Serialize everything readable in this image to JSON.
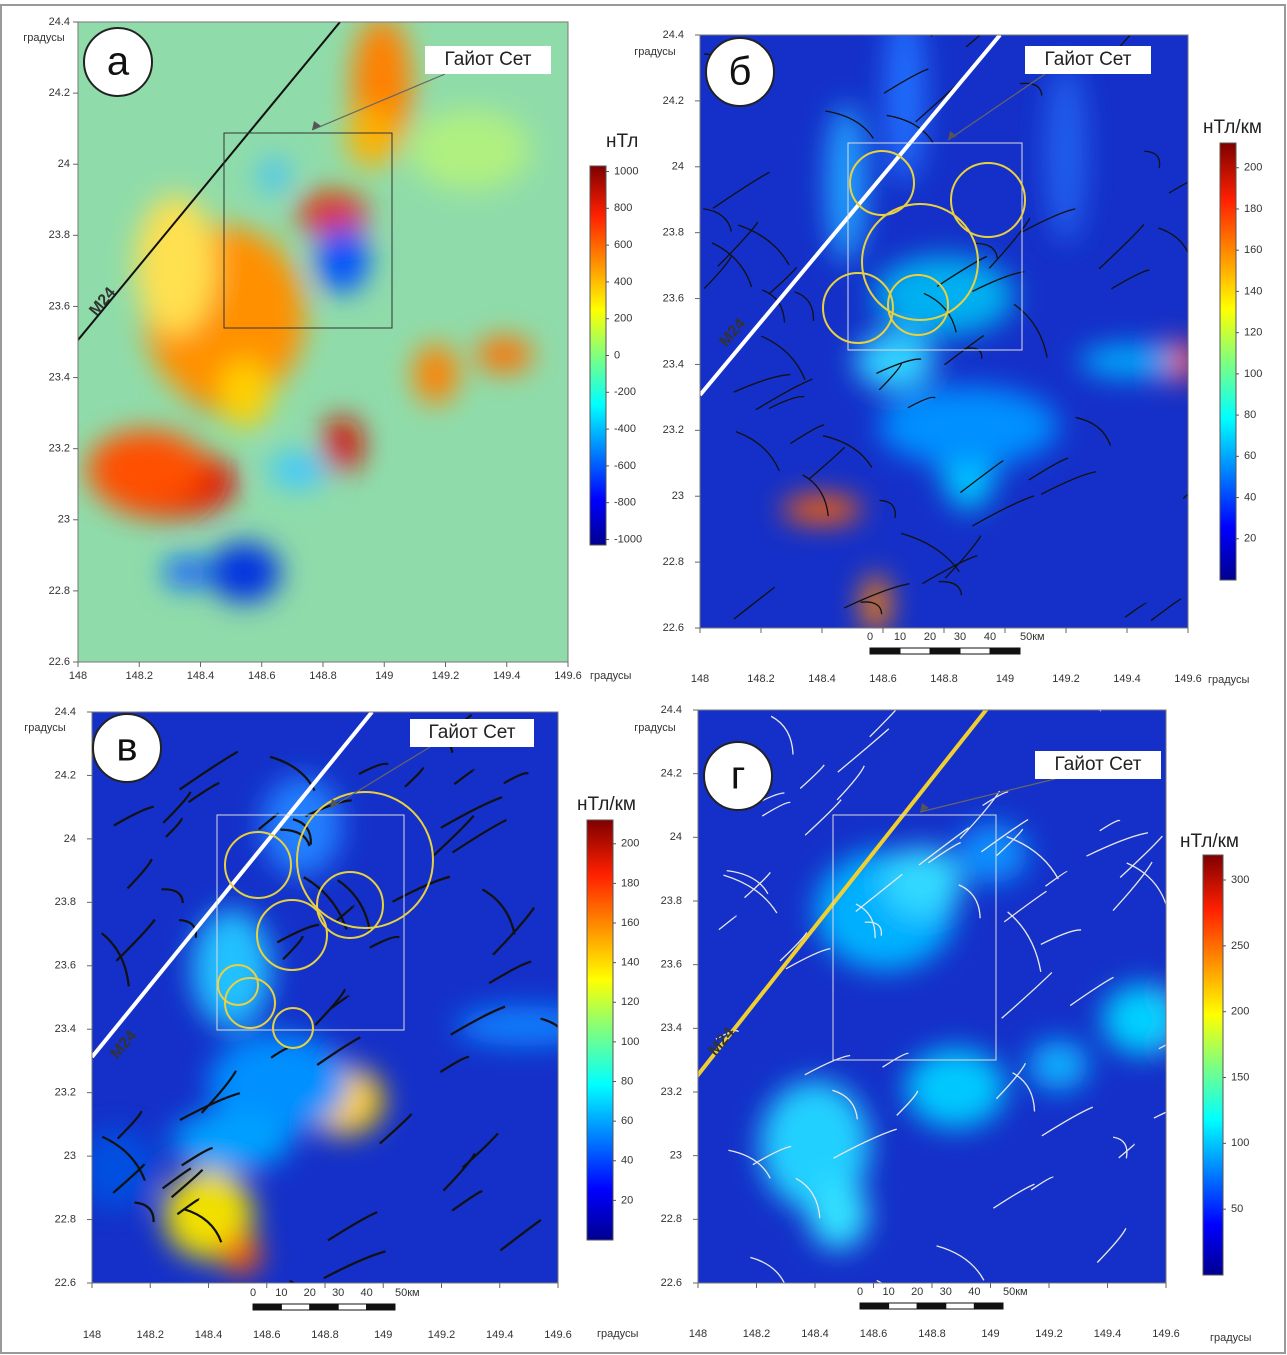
{
  "panels": [
    {
      "label": "а",
      "unit": "нТл",
      "x_unit": "градусы",
      "y_unit": "градусы",
      "line_label": "М24",
      "annotation": "Гайот Сет",
      "xlim": [
        148,
        149.6
      ],
      "xticks": [
        148,
        148.2,
        148.4,
        148.6,
        148.8,
        149,
        149.2,
        149.4,
        149.6
      ],
      "ylim": [
        22.6,
        24.4
      ],
      "yticks": [
        22.6,
        22.8,
        23,
        23.2,
        23.4,
        23.6,
        23.8,
        24,
        24.2,
        24.4
      ],
      "colorbar": {
        "lim": [
          -1030,
          1030
        ],
        "ticks": [
          1000,
          800,
          600,
          400,
          200,
          0,
          -200,
          -400,
          -600,
          -800,
          -1000
        ]
      }
    },
    {
      "label": "б",
      "unit": "нТл/км",
      "x_unit": "градусы",
      "y_unit": "градусы",
      "line_label": "М24",
      "annotation": "Гайот Сет",
      "xlim": [
        148,
        149.6
      ],
      "xticks": [
        148,
        148.2,
        148.4,
        148.6,
        148.8,
        149,
        149.2,
        149.4,
        149.6
      ],
      "ylim": [
        22.6,
        24.4
      ],
      "yticks": [
        22.6,
        22.8,
        23,
        23.2,
        23.4,
        23.6,
        23.8,
        24,
        24.2,
        24.4
      ],
      "colorbar": {
        "lim": [
          0,
          212
        ],
        "ticks": [
          200,
          180,
          160,
          140,
          120,
          100,
          80,
          60,
          40,
          20
        ]
      },
      "scale_labels": [
        "0",
        "10",
        "20",
        "30",
        "40",
        "50км"
      ]
    },
    {
      "label": "в",
      "unit": "нТл/км",
      "x_unit": "градусы",
      "y_unit": "градусы",
      "line_label": "М24",
      "annotation": "Гайот Сет",
      "xlim": [
        148,
        149.6
      ],
      "xticks": [
        148,
        148.2,
        148.4,
        148.6,
        148.8,
        149,
        149.2,
        149.4,
        149.6
      ],
      "ylim": [
        22.6,
        24.4
      ],
      "yticks": [
        22.6,
        22.8,
        23,
        23.2,
        23.4,
        23.6,
        23.8,
        24,
        24.2,
        24.4
      ],
      "colorbar": {
        "lim": [
          0,
          212
        ],
        "ticks": [
          200,
          180,
          160,
          140,
          120,
          100,
          80,
          60,
          40,
          20
        ]
      },
      "scale_labels": [
        "0",
        "10",
        "20",
        "30",
        "40",
        "50км"
      ]
    },
    {
      "label": "г",
      "unit": "нТл/км",
      "x_unit": "градусы",
      "y_unit": "градусы",
      "line_label": "М24",
      "annotation": "Гайот Сет",
      "xlim": [
        148,
        149.6
      ],
      "xticks": [
        148,
        148.2,
        148.4,
        148.6,
        148.8,
        149,
        149.2,
        149.4,
        149.6
      ],
      "ylim": [
        22.6,
        24.4
      ],
      "yticks": [
        22.6,
        22.8,
        23,
        23.2,
        23.4,
        23.6,
        23.8,
        24,
        24.2,
        24.4
      ],
      "colorbar": {
        "lim": [
          0,
          319
        ],
        "ticks": [
          300,
          250,
          200,
          150,
          100,
          50
        ]
      },
      "scale_labels": [
        "0",
        "10",
        "20",
        "30",
        "40",
        "50км"
      ]
    }
  ]
}
